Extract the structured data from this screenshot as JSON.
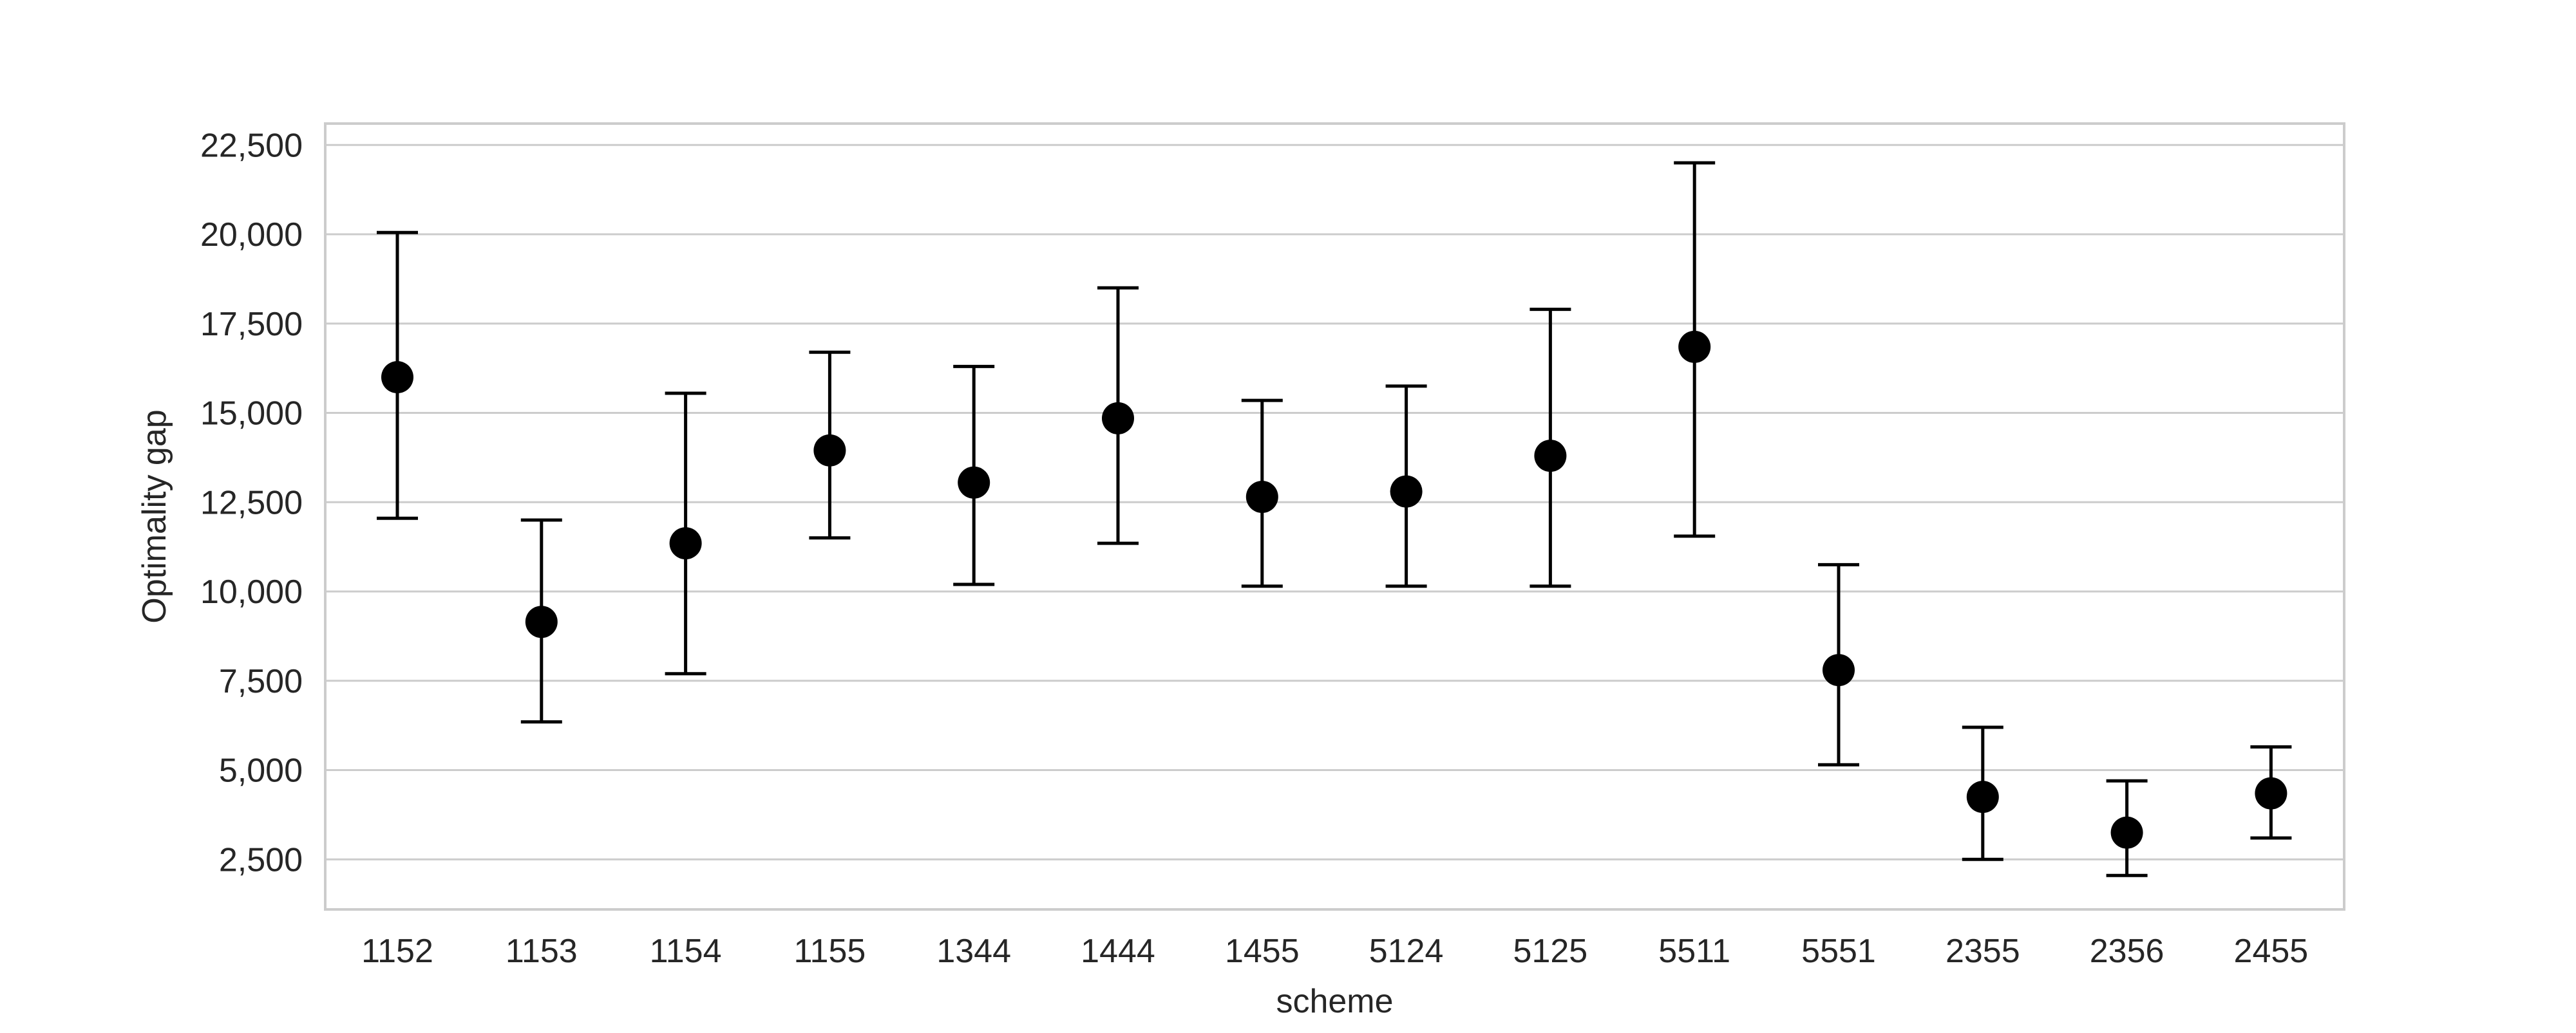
{
  "chart_data": {
    "type": "errorbar",
    "title": "",
    "xlabel": "scheme",
    "ylabel": "Optimality gap",
    "categories": [
      "1152",
      "1153",
      "1154",
      "1155",
      "1344",
      "1444",
      "1455",
      "5124",
      "5125",
      "5511",
      "5551",
      "2355",
      "2356",
      "2455"
    ],
    "series": [
      {
        "values": [
          16000,
          9150,
          11350,
          13950,
          13050,
          14850,
          12650,
          12800,
          13800,
          16850,
          7800,
          4250,
          3250,
          4350
        ],
        "lower": [
          12050,
          6350,
          7700,
          11500,
          10200,
          11350,
          10150,
          10150,
          10150,
          11550,
          5150,
          2500,
          2050,
          3100
        ],
        "upper": [
          20050,
          12000,
          15550,
          16700,
          16300,
          18500,
          15350,
          15750,
          17900,
          22000,
          10750,
          6200,
          4700,
          5650
        ]
      }
    ],
    "ylim": [
      1100,
      23100
    ],
    "yticks": [
      2500,
      5000,
      7500,
      10000,
      12500,
      15000,
      17500,
      20000,
      22500
    ],
    "ytick_labels": [
      "2,500",
      "5,000",
      "7,500",
      "10,000",
      "12,500",
      "15,000",
      "17,500",
      "20,000",
      "22,500"
    ],
    "grid": "horizontal",
    "colors": {
      "marker": "#000000",
      "errorbar": "#000000",
      "grid": "#cccccc",
      "frame": "#cccccc"
    }
  }
}
